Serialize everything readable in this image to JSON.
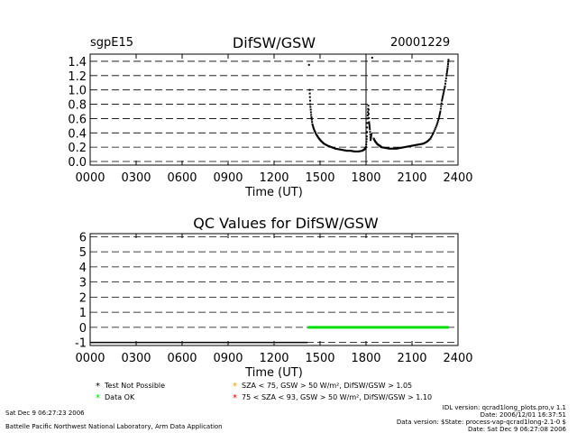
{
  "header": {
    "site": "sgpE15",
    "date": "20001229"
  },
  "chart_data": [
    {
      "type": "scatter",
      "title": "DifSW/GSW",
      "xlabel": "Time (UT)",
      "ylabel": "",
      "xlim": [
        0,
        2400
      ],
      "ylim": [
        -0.05,
        1.5
      ],
      "x_ticks": [
        "0000",
        "0300",
        "0600",
        "0900",
        "1200",
        "1500",
        "1800",
        "2100",
        "2400"
      ],
      "y_ticks": [
        "0.0",
        "0.2",
        "0.4",
        "0.6",
        "0.8",
        "1.0",
        "1.2",
        "1.4"
      ],
      "grid": "horizontal dashed",
      "marker_vline_hours": 18.0,
      "color": "#000000",
      "series": [
        {
          "name": "",
          "x_hours": [
            14.28,
            14.32,
            14.36,
            14.42,
            14.5,
            14.6,
            14.75,
            14.9,
            15.05,
            15.25,
            15.5,
            15.75,
            16.0,
            16.25,
            16.5,
            16.75,
            17.0,
            17.25,
            17.5,
            17.75,
            17.9,
            18.0,
            18.05,
            18.1,
            18.15,
            18.2,
            18.25,
            18.3,
            18.35,
            18.4,
            18.5,
            18.6,
            18.75,
            18.9,
            19.0,
            19.25,
            19.5,
            19.75,
            20.0,
            20.25,
            20.5,
            20.75,
            21.0,
            21.25,
            21.5,
            21.75,
            22.0,
            22.2,
            22.4,
            22.6,
            22.75,
            22.85,
            22.95,
            23.05,
            23.15,
            23.25,
            23.32,
            23.38
          ],
          "values": [
            1.35,
            1.0,
            0.8,
            0.65,
            0.52,
            0.45,
            0.38,
            0.33,
            0.29,
            0.25,
            0.22,
            0.2,
            0.18,
            0.17,
            0.16,
            0.15,
            0.15,
            0.14,
            0.14,
            0.15,
            0.17,
            0.2,
            0.35,
            0.6,
            0.78,
            0.55,
            0.45,
            0.3,
            0.38,
            1.45,
            0.32,
            0.28,
            0.24,
            0.22,
            0.2,
            0.19,
            0.18,
            0.18,
            0.18,
            0.19,
            0.2,
            0.21,
            0.22,
            0.23,
            0.24,
            0.25,
            0.28,
            0.32,
            0.4,
            0.5,
            0.6,
            0.7,
            0.85,
            0.95,
            1.05,
            1.2,
            1.3,
            1.42
          ]
        }
      ]
    },
    {
      "type": "line",
      "title": "QC Values for DifSW/GSW",
      "xlabel": "Time (UT)",
      "ylabel": "",
      "xlim": [
        0,
        2400
      ],
      "ylim": [
        -1.2,
        6.2
      ],
      "x_ticks": [
        "0000",
        "0300",
        "0600",
        "0900",
        "1200",
        "1500",
        "1800",
        "2100",
        "2400"
      ],
      "y_ticks": [
        "-1",
        "0",
        "1",
        "2",
        "3",
        "4",
        "5",
        "6"
      ],
      "grid": "horizontal dashed",
      "series": [
        {
          "name": "Test Not Possible",
          "color": "#000000",
          "x_hours": [
            0,
            14.2
          ],
          "values": [
            -1,
            -1
          ]
        },
        {
          "name": "Data OK",
          "color": "#00e000",
          "x_hours": [
            14.2,
            23.4
          ],
          "values": [
            0,
            0
          ]
        }
      ]
    }
  ],
  "legend": [
    {
      "symbol": "*",
      "color": "#000000",
      "label": "Test Not Possible"
    },
    {
      "symbol": "*",
      "color": "#00e000",
      "label": "Data OK"
    },
    {
      "symbol": "*",
      "color": "#e0a000",
      "label": "SZA < 75, GSW > 50 W/m², DifSW/GSW > 1.05"
    },
    {
      "symbol": "*",
      "color": "#e00000",
      "label": "75 < SZA < 93, GSW > 50 W/m², DifSW/GSW > 1.10"
    }
  ],
  "footer": {
    "left_date": "Sat Dec  9 06:27:23 2006",
    "left_org": "Battelle Pacific Northwest National Laboratory, Arm Data Application",
    "right_line1": "IDL version: qcrad1long_plots.pro,v 1.1",
    "right_line2": "Date: 2006/12/01 16:37:51",
    "right_line3": "Data version: $State: process-vap-qcrad1long-2.1-0 $",
    "right_line4": "Date: Sat Dec  9 06:27:08 2006"
  }
}
